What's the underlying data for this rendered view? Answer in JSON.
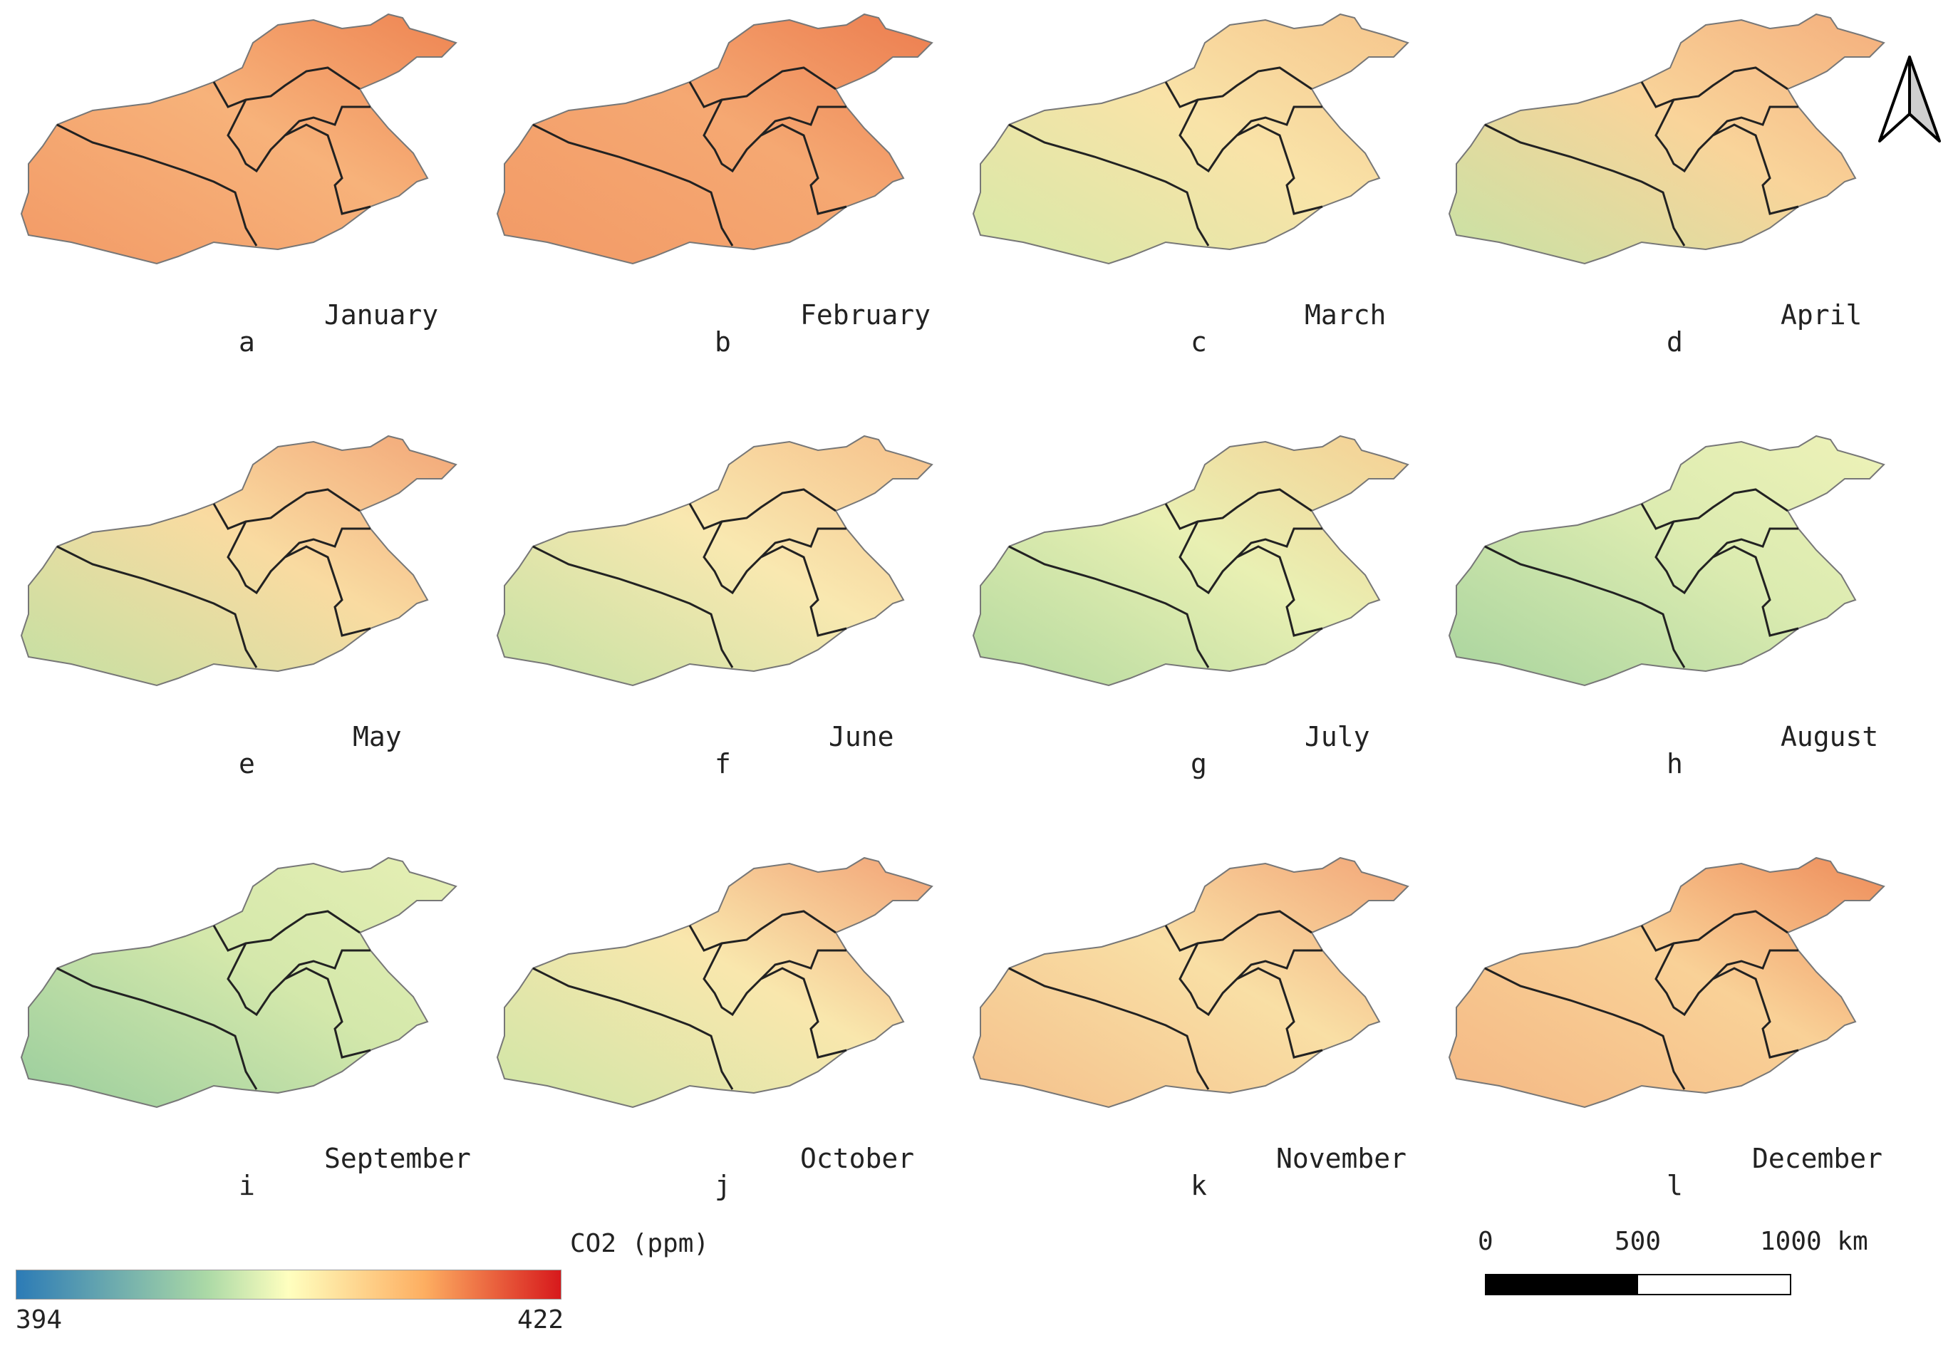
{
  "panels": [
    {
      "letter": "a",
      "month": "January",
      "fill": "#f7b27a",
      "alt": "#f29a66",
      "accent": "#ee8452"
    },
    {
      "letter": "b",
      "month": "February",
      "fill": "#f5a872",
      "alt": "#f29a66",
      "accent": "#ec7d4f"
    },
    {
      "letter": "c",
      "month": "March",
      "fill": "#f9e3a8",
      "alt": "#d6e9a8",
      "accent": "#f6c58c"
    },
    {
      "letter": "d",
      "month": "April",
      "fill": "#f9d49a",
      "alt": "#c7e2a5",
      "accent": "#f4ae7c"
    },
    {
      "letter": "e",
      "month": "May",
      "fill": "#f9dba1",
      "alt": "#c3e0a3",
      "accent": "#f3a677"
    },
    {
      "letter": "f",
      "month": "June",
      "fill": "#f9e8b0",
      "alt": "#c4e1a4",
      "accent": "#f6c08a"
    },
    {
      "letter": "g",
      "month": "July",
      "fill": "#e9f0b3",
      "alt": "#b3d99f",
      "accent": "#f6cf93"
    },
    {
      "letter": "h",
      "month": "August",
      "fill": "#dbebb0",
      "alt": "#a8d49e",
      "accent": "#eef2b8"
    },
    {
      "letter": "i",
      "month": "September",
      "fill": "#d4e8ab",
      "alt": "#99cd9d",
      "accent": "#e6efb4"
    },
    {
      "letter": "j",
      "month": "October",
      "fill": "#f9e7ad",
      "alt": "#cfe6a7",
      "accent": "#f2a275"
    },
    {
      "letter": "k",
      "month": "November",
      "fill": "#f9dfa5",
      "alt": "#f4c08b",
      "accent": "#f2a577"
    },
    {
      "letter": "l",
      "month": "December",
      "fill": "#f9d197",
      "alt": "#f4b884",
      "accent": "#ee8c5a"
    }
  ],
  "legend": {
    "title": "CO2 (ppm)",
    "min": "394",
    "max": "422"
  },
  "scalebar": {
    "l0": "0",
    "l1": "500",
    "l2": "1000 km"
  },
  "colors": {
    "boundary": "#222222",
    "outline": "#777777"
  }
}
